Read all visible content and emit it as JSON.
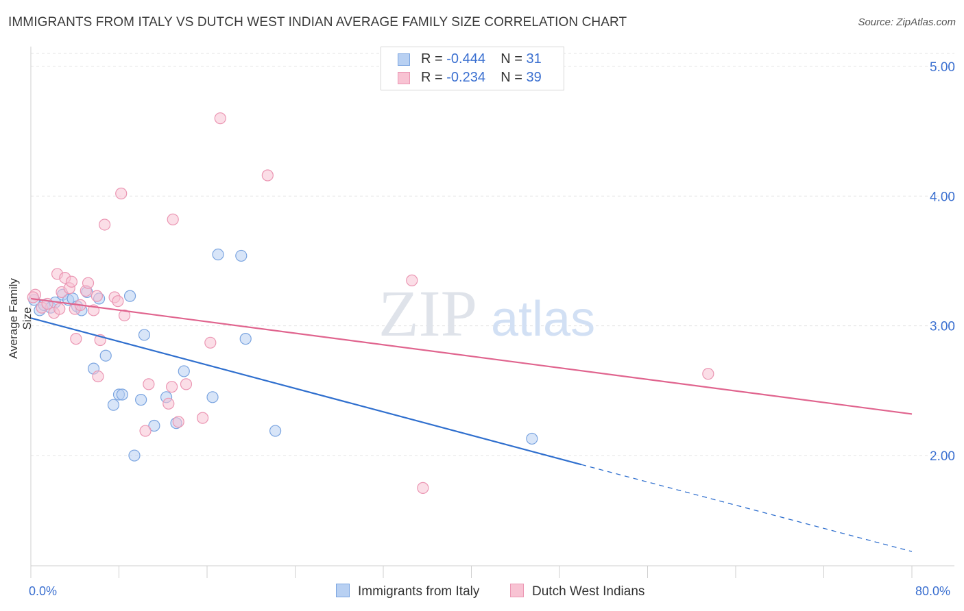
{
  "title": "IMMIGRANTS FROM ITALY VS DUTCH WEST INDIAN AVERAGE FAMILY SIZE CORRELATION CHART",
  "source": "Source: ZipAtlas.com",
  "watermark": {
    "zip": "ZIP",
    "atlas": "atlas"
  },
  "legend_top": {
    "italy": {
      "r_label": "R = ",
      "r_value": "-0.444",
      "n_label": "N = ",
      "n_value": "31"
    },
    "dutch": {
      "r_label": "R = ",
      "r_value": "-0.234",
      "n_label": "N = ",
      "n_value": "39"
    }
  },
  "colors": {
    "italy_fill": "#b8d0f2",
    "italy_stroke": "#7aa4e0",
    "italy_line": "#2f6fce",
    "dutch_fill": "#f8c3d3",
    "dutch_stroke": "#eb96b3",
    "dutch_line": "#e0648e",
    "axis_label": "#3a6fd0"
  },
  "chart_data": {
    "type": "scatter",
    "title": "IMMIGRANTS FROM ITALY VS DUTCH WEST INDIAN AVERAGE FAMILY SIZE CORRELATION CHART",
    "xlabel": "",
    "ylabel": "Average Family Size",
    "xlim": [
      0,
      80
    ],
    "ylim": [
      1.15,
      5.1
    ],
    "x_tick_labels": [
      "0.0%",
      "80.0%"
    ],
    "y_ticks": [
      2.0,
      3.0,
      4.0,
      5.0
    ],
    "y_tick_labels": [
      "2.00",
      "3.00",
      "4.00",
      "5.00"
    ],
    "grid": true,
    "series": [
      {
        "name": "Immigrants from Italy",
        "R": -0.444,
        "N": 31,
        "points": [
          [
            0.3,
            3.2
          ],
          [
            0.8,
            3.12
          ],
          [
            1.2,
            3.16
          ],
          [
            1.8,
            3.14
          ],
          [
            2.2,
            3.18
          ],
          [
            2.9,
            3.24
          ],
          [
            3.4,
            3.2
          ],
          [
            3.8,
            3.21
          ],
          [
            4.2,
            3.15
          ],
          [
            4.6,
            3.12
          ],
          [
            5.1,
            3.26
          ],
          [
            6.2,
            3.21
          ],
          [
            6.8,
            2.77
          ],
          [
            5.7,
            2.67
          ],
          [
            7.5,
            2.39
          ],
          [
            8.0,
            2.47
          ],
          [
            8.3,
            2.47
          ],
          [
            9.0,
            3.23
          ],
          [
            9.4,
            2.0
          ],
          [
            10.0,
            2.43
          ],
          [
            10.3,
            2.93
          ],
          [
            11.2,
            2.23
          ],
          [
            12.3,
            2.45
          ],
          [
            13.2,
            2.25
          ],
          [
            13.9,
            2.65
          ],
          [
            16.5,
            2.45
          ],
          [
            17.0,
            3.55
          ],
          [
            19.1,
            3.54
          ],
          [
            19.5,
            2.9
          ],
          [
            22.2,
            2.19
          ],
          [
            45.5,
            2.13
          ]
        ],
        "trend": {
          "x0": 0,
          "y0": 3.06,
          "x1": 50,
          "y1": 1.93,
          "dashed_to_x": 80,
          "dashed_to_y": 1.26
        }
      },
      {
        "name": "Dutch West Indians",
        "R": -0.234,
        "N": 39,
        "points": [
          [
            0.4,
            3.24
          ],
          [
            1.0,
            3.14
          ],
          [
            1.5,
            3.17
          ],
          [
            2.1,
            3.1
          ],
          [
            2.4,
            3.4
          ],
          [
            2.8,
            3.26
          ],
          [
            3.1,
            3.37
          ],
          [
            3.5,
            3.29
          ],
          [
            3.7,
            3.34
          ],
          [
            4.0,
            3.13
          ],
          [
            4.1,
            2.9
          ],
          [
            4.5,
            3.16
          ],
          [
            5.0,
            3.27
          ],
          [
            5.2,
            3.33
          ],
          [
            5.7,
            3.12
          ],
          [
            6.0,
            3.23
          ],
          [
            6.1,
            2.61
          ],
          [
            6.3,
            2.89
          ],
          [
            6.7,
            3.78
          ],
          [
            7.6,
            3.22
          ],
          [
            7.9,
            3.19
          ],
          [
            8.2,
            4.02
          ],
          [
            8.5,
            3.08
          ],
          [
            10.4,
            2.19
          ],
          [
            10.7,
            2.55
          ],
          [
            12.5,
            2.4
          ],
          [
            12.8,
            2.53
          ],
          [
            12.9,
            3.82
          ],
          [
            13.4,
            2.26
          ],
          [
            14.1,
            2.55
          ],
          [
            15.6,
            2.29
          ],
          [
            16.3,
            2.87
          ],
          [
            17.2,
            4.6
          ],
          [
            21.5,
            4.16
          ],
          [
            34.6,
            3.35
          ],
          [
            35.6,
            1.75
          ],
          [
            61.5,
            2.63
          ],
          [
            0.2,
            3.22
          ],
          [
            2.6,
            3.13
          ]
        ],
        "trend": {
          "x0": 0,
          "y0": 3.21,
          "x1": 80,
          "y1": 2.32
        }
      }
    ]
  },
  "bottom_legend": [
    {
      "label": "Immigrants from Italy"
    },
    {
      "label": "Dutch West Indians"
    }
  ]
}
